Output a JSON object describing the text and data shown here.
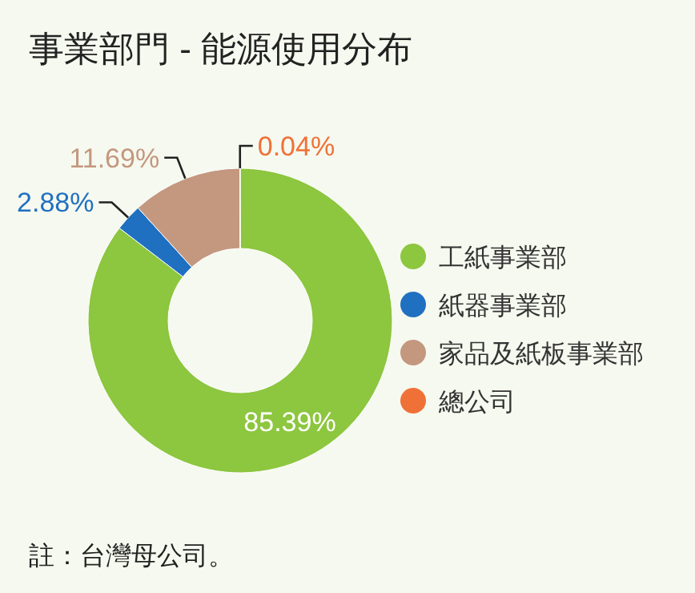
{
  "chart_data": {
    "type": "donut",
    "title": "事業部門 - 能源使用分布",
    "categories": [
      "工紙事業部",
      "紙器事業部",
      "家品及紙板事業部",
      "總公司"
    ],
    "values": [
      85.39,
      2.88,
      11.69,
      0.04
    ],
    "colors": [
      "#8dc63f",
      "#1f70c1",
      "#c4977f",
      "#f07138"
    ],
    "value_labels": [
      "85.39%",
      "2.88%",
      "11.69%",
      "0.04%"
    ],
    "legend": "right",
    "annotations": [
      "註：台灣母公司。"
    ]
  }
}
